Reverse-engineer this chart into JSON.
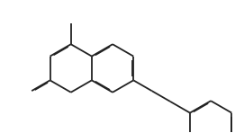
{
  "background": "#ffffff",
  "line_color": "#222222",
  "line_width": 1.3,
  "dbo": 0.008,
  "figsize": [
    2.61,
    1.48
  ],
  "dpi": 100,
  "xlim": [
    0,
    2.61
  ],
  "ylim": [
    0,
    1.48
  ]
}
